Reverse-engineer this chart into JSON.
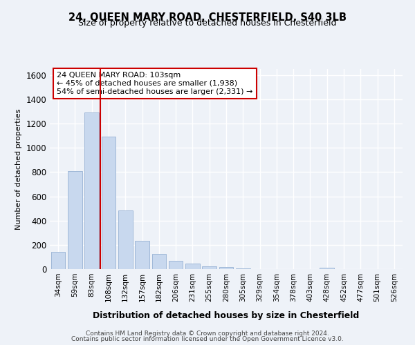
{
  "title_line1": "24, QUEEN MARY ROAD, CHESTERFIELD, S40 3LB",
  "title_line2": "Size of property relative to detached houses in Chesterfield",
  "xlabel": "Distribution of detached houses by size in Chesterfield",
  "ylabel": "Number of detached properties",
  "categories": [
    "34sqm",
    "59sqm",
    "83sqm",
    "108sqm",
    "132sqm",
    "157sqm",
    "182sqm",
    "206sqm",
    "231sqm",
    "255sqm",
    "280sqm",
    "305sqm",
    "329sqm",
    "354sqm",
    "378sqm",
    "403sqm",
    "428sqm",
    "452sqm",
    "477sqm",
    "501sqm",
    "526sqm"
  ],
  "values": [
    140,
    810,
    1290,
    1090,
    485,
    235,
    128,
    70,
    48,
    25,
    15,
    8,
    0,
    0,
    0,
    0,
    13,
    0,
    0,
    0,
    0
  ],
  "bar_color": "#c8d8ee",
  "bar_edge_color": "#a0b8d8",
  "vline_index": 3,
  "vline_color": "#cc0000",
  "annotation_text": "24 QUEEN MARY ROAD: 103sqm\n← 45% of detached houses are smaller (1,938)\n54% of semi-detached houses are larger (2,331) →",
  "annotation_box_color": "#ffffff",
  "annotation_box_edge": "#cc0000",
  "ylim": [
    0,
    1650
  ],
  "yticks": [
    0,
    200,
    400,
    600,
    800,
    1000,
    1200,
    1400,
    1600
  ],
  "background_color": "#eef2f8",
  "grid_color": "#ffffff",
  "footer_line1": "Contains HM Land Registry data © Crown copyright and database right 2024.",
  "footer_line2": "Contains public sector information licensed under the Open Government Licence v3.0."
}
